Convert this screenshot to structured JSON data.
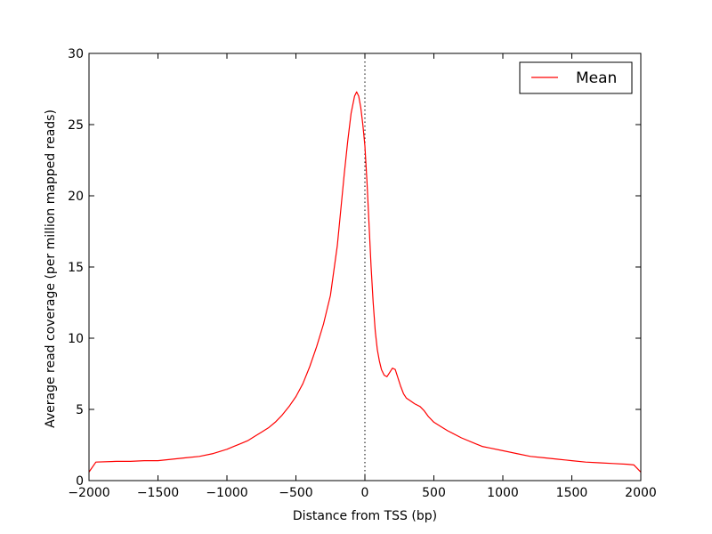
{
  "chart_data": {
    "type": "line",
    "title": "",
    "xlabel": "Distance from TSS (bp)",
    "ylabel": "Average read coverage (per million mapped reads)",
    "xlim": [
      -2000,
      2000
    ],
    "ylim": [
      0,
      30
    ],
    "xticks": [
      -2000,
      -1500,
      -1000,
      -500,
      0,
      500,
      1000,
      1500,
      2000
    ],
    "xtick_labels": [
      "−2000",
      "−1500",
      "−1000",
      "−500",
      "0",
      "500",
      "1000",
      "1500",
      "2000"
    ],
    "yticks": [
      0,
      5,
      10,
      15,
      20,
      25,
      30
    ],
    "ytick_labels": [
      "0",
      "5",
      "10",
      "15",
      "20",
      "25",
      "30"
    ],
    "grid": false,
    "legend_position": "top-right",
    "reference_line": {
      "x": 0,
      "style": "dotted",
      "color": "#000000"
    },
    "series": [
      {
        "name": "Mean",
        "color": "#ff0000",
        "x": [
          -2000,
          -1950,
          -1800,
          -1700,
          -1600,
          -1500,
          -1400,
          -1300,
          -1200,
          -1100,
          -1000,
          -950,
          -900,
          -850,
          -800,
          -750,
          -700,
          -650,
          -600,
          -550,
          -500,
          -450,
          -400,
          -350,
          -300,
          -250,
          -200,
          -175,
          -150,
          -125,
          -100,
          -75,
          -60,
          -45,
          -30,
          -15,
          0,
          15,
          30,
          45,
          60,
          75,
          90,
          105,
          120,
          140,
          160,
          180,
          200,
          220,
          240,
          260,
          280,
          300,
          330,
          360,
          400,
          430,
          460,
          500,
          550,
          600,
          700,
          800,
          850,
          900,
          1000,
          1100,
          1200,
          1300,
          1400,
          1500,
          1600,
          1700,
          1800,
          1900,
          1950,
          2000
        ],
        "y": [
          0.6,
          1.3,
          1.35,
          1.35,
          1.4,
          1.4,
          1.5,
          1.6,
          1.7,
          1.9,
          2.2,
          2.4,
          2.6,
          2.8,
          3.1,
          3.4,
          3.7,
          4.1,
          4.6,
          5.2,
          5.9,
          6.8,
          8.0,
          9.4,
          11.0,
          13.0,
          16.5,
          19.0,
          21.5,
          23.8,
          25.8,
          27.0,
          27.3,
          27.0,
          26.2,
          25.0,
          23.5,
          21.0,
          18.0,
          15.0,
          12.5,
          10.5,
          9.2,
          8.4,
          7.8,
          7.4,
          7.3,
          7.6,
          7.9,
          7.8,
          7.2,
          6.6,
          6.1,
          5.8,
          5.6,
          5.4,
          5.2,
          4.9,
          4.5,
          4.1,
          3.8,
          3.5,
          3.0,
          2.6,
          2.4,
          2.3,
          2.1,
          1.9,
          1.7,
          1.6,
          1.5,
          1.4,
          1.3,
          1.25,
          1.2,
          1.15,
          1.1,
          0.6
        ]
      }
    ]
  }
}
